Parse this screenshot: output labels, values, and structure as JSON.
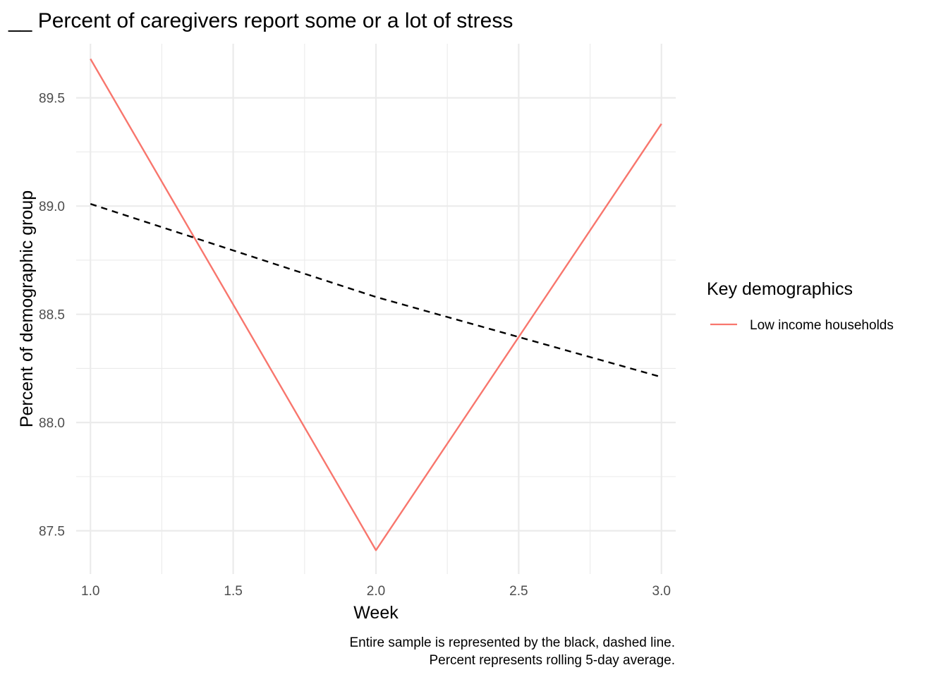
{
  "chart_data": {
    "type": "line",
    "title": "__ Percent of caregivers report some or a lot of stress",
    "xlabel": "Week",
    "ylabel": "Percent of demographic group",
    "xlim": [
      0.95,
      3.05
    ],
    "ylim": [
      87.3,
      89.75
    ],
    "x_ticks": [
      1.0,
      1.5,
      2.0,
      2.5,
      3.0
    ],
    "x_tick_labels": [
      "1.0",
      "1.5",
      "2.0",
      "2.5",
      "3.0"
    ],
    "y_ticks": [
      87.5,
      88.0,
      88.5,
      89.0,
      89.5
    ],
    "y_tick_labels": [
      "87.5",
      "88.0",
      "88.5",
      "89.0",
      "89.5"
    ],
    "grid": true,
    "series": [
      {
        "name": "Low income households",
        "color": "#f8766d",
        "dash": "solid",
        "x": [
          1,
          2,
          3
        ],
        "values": [
          89.68,
          87.41,
          89.38
        ]
      },
      {
        "color": "#000000",
        "dash": "dashed",
        "x": [
          1,
          2,
          3
        ],
        "values": [
          89.01,
          88.58,
          88.21
        ]
      }
    ],
    "legend": {
      "title": "Key demographics",
      "position": "right",
      "entries": [
        "Low income households"
      ]
    },
    "caption": [
      "Entire sample is represented by the black, dashed line.",
      "Percent represents rolling 5-day average."
    ]
  }
}
